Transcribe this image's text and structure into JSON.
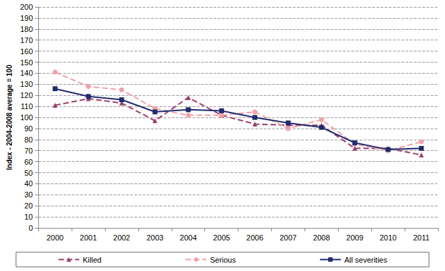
{
  "chart_data": {
    "type": "line",
    "y_label": "Index - 2004-2008 average = 100",
    "categories": [
      "2000",
      "2001",
      "2002",
      "2003",
      "2004",
      "2005",
      "2006",
      "2007",
      "2008",
      "2009",
      "2010",
      "2011"
    ],
    "series": [
      {
        "name": "Killed",
        "color": "#9e3d6b",
        "marker": "triangle",
        "line_style": "dashed",
        "values": [
          111,
          117,
          113,
          97,
          118,
          102,
          94,
          93,
          93,
          72,
          72,
          66
        ]
      },
      {
        "name": "Serious",
        "color": "#f4a0a6",
        "marker": "circle",
        "line_style": "dashed",
        "values": [
          141,
          128,
          125,
          108,
          102,
          102,
          105,
          90,
          98,
          76,
          70,
          78
        ]
      },
      {
        "name": "All severities",
        "color": "#1f2b6e",
        "marker": "square",
        "line_style": "solid",
        "values": [
          126,
          119,
          116,
          105,
          107,
          106,
          100,
          95,
          91,
          77,
          71,
          72
        ]
      }
    ],
    "ylim": [
      0,
      200
    ],
    "yticks": [
      0,
      10,
      20,
      30,
      40,
      50,
      60,
      70,
      80,
      90,
      100,
      110,
      120,
      130,
      140,
      150,
      160,
      170,
      180,
      190,
      200
    ],
    "grid": true,
    "legend": "bottom"
  }
}
